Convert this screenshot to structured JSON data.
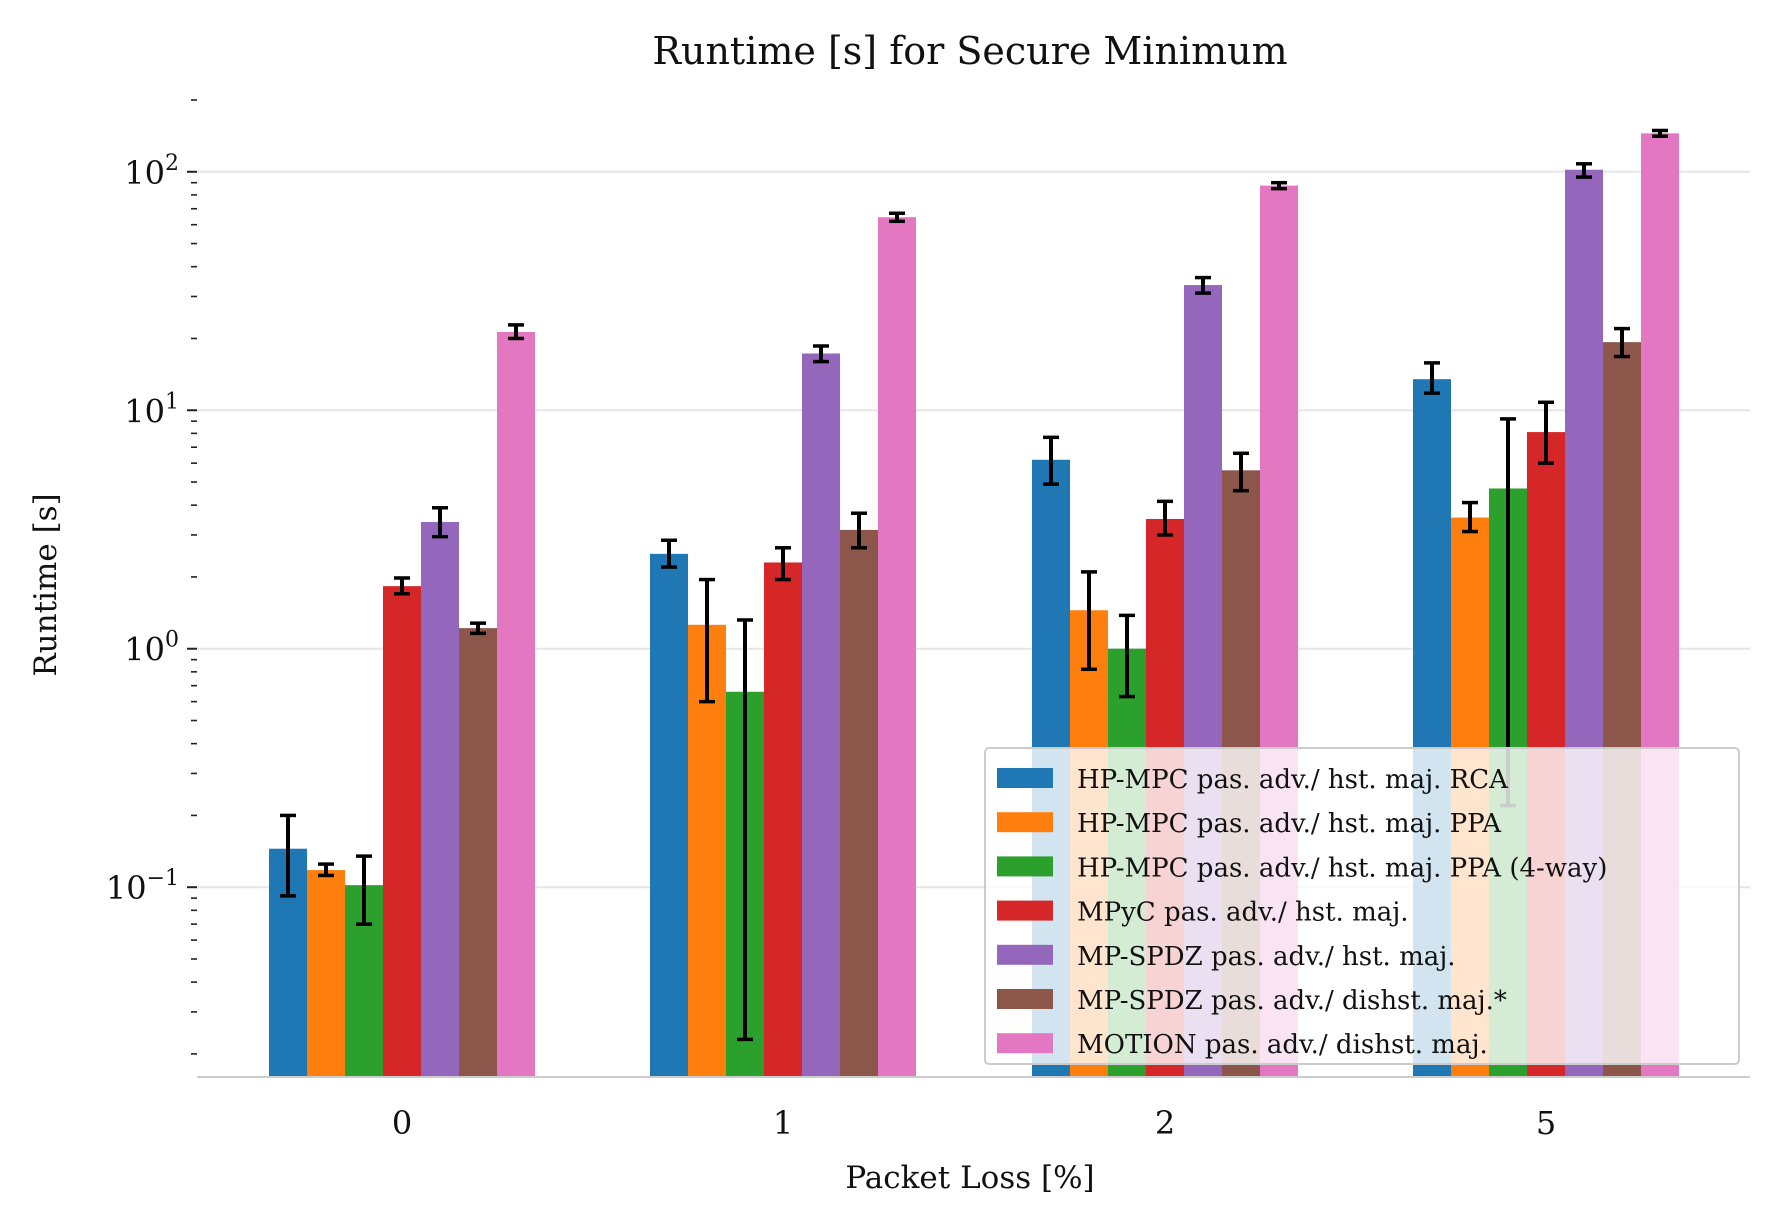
{
  "chart_data": {
    "type": "bar",
    "title": "Runtime [s] for Secure Minimum",
    "xlabel": "Packet Loss [%]",
    "ylabel": "Runtime [s]",
    "yscale": "log",
    "ylim": [
      0.016,
      200
    ],
    "grid": "horizontal",
    "legend_position": "lower-right",
    "categories": [
      "0",
      "1",
      "2",
      "5"
    ],
    "y_ticks": [
      {
        "mantissa": "10",
        "exponent": "−1",
        "value": 0.1
      },
      {
        "mantissa": "10",
        "exponent": "0",
        "value": 1
      },
      {
        "mantissa": "10",
        "exponent": "1",
        "value": 10
      },
      {
        "mantissa": "10",
        "exponent": "2",
        "value": 100
      }
    ],
    "series": [
      {
        "name": "HP-MPC pas. adv./ hst. maj. RCA",
        "color": "#1f77b4",
        "values": [
          0.145,
          2.5,
          6.2,
          13.5
        ],
        "err_low": [
          0.092,
          2.2,
          4.9,
          11.8
        ],
        "err_high": [
          0.2,
          2.85,
          7.7,
          15.8
        ]
      },
      {
        "name": "HP-MPC pas. adv./ hst. maj. PPA",
        "color": "#ff7f0e",
        "values": [
          0.118,
          1.26,
          1.45,
          3.55
        ],
        "err_low": [
          0.112,
          0.6,
          0.82,
          3.1
        ],
        "err_high": [
          0.125,
          1.95,
          2.1,
          4.1
        ]
      },
      {
        "name": "HP-MPC pas. adv./ hst. maj. PPA (4-way)",
        "color": "#2ca02c",
        "values": [
          0.102,
          0.66,
          1.0,
          4.7
        ],
        "err_low": [
          0.07,
          0.023,
          0.63,
          0.22
        ],
        "err_high": [
          0.135,
          1.32,
          1.38,
          9.2
        ]
      },
      {
        "name": "MPyC pas. adv./ hst. maj.",
        "color": "#d62728",
        "values": [
          1.83,
          2.3,
          3.5,
          8.1
        ],
        "err_low": [
          1.7,
          1.95,
          3.0,
          6.0
        ],
        "err_high": [
          1.98,
          2.65,
          4.15,
          10.8
        ]
      },
      {
        "name": "MP-SPDZ pas. adv./ hst. maj.",
        "color": "#9467bd",
        "values": [
          3.4,
          17.3,
          33.5,
          102
        ],
        "err_low": [
          2.95,
          16.0,
          31.0,
          95
        ],
        "err_high": [
          3.9,
          18.6,
          36.0,
          108
        ]
      },
      {
        "name": "MP-SPDZ pas. adv./ dishst. maj.*",
        "color": "#8c564b",
        "values": [
          1.22,
          3.15,
          5.6,
          19.3
        ],
        "err_low": [
          1.16,
          2.65,
          4.6,
          16.8
        ],
        "err_high": [
          1.28,
          3.7,
          6.6,
          22.0
        ]
      },
      {
        "name": "MOTION pas. adv./ dishst. maj.",
        "color": "#e377c2",
        "values": [
          21.3,
          64.5,
          87.5,
          145
        ],
        "err_low": [
          20.0,
          62.0,
          85.0,
          141
        ],
        "err_high": [
          22.8,
          67.0,
          90.0,
          149
        ]
      }
    ]
  }
}
